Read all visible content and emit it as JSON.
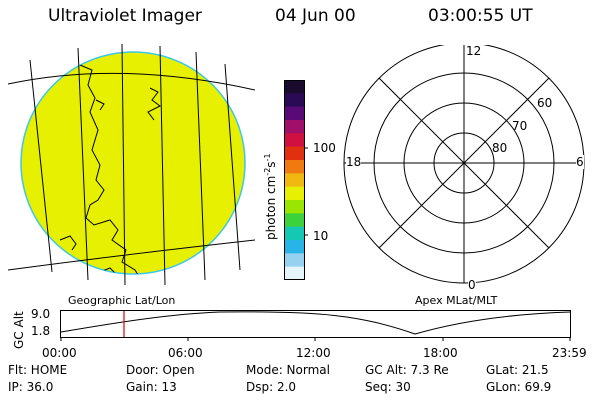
{
  "header": {
    "instrument": "Ultraviolet Imager",
    "date": "04 Jun 00",
    "time": "03:00:55 UT"
  },
  "geo_map": {
    "caption": "Geographic Lat/Lon",
    "fill_color": "#e6f000"
  },
  "color_bar": {
    "unit_label": "photon cm",
    "unit_exp1": "-2",
    "unit_mid": "s",
    "unit_exp2": "-1",
    "tick_100": "100",
    "tick_10": "10",
    "colors": [
      "#1a0a2e",
      "#2a0a55",
      "#5a0a77",
      "#a0106a",
      "#d01040",
      "#e03010",
      "#f07a10",
      "#f0b810",
      "#e6f000",
      "#9ae600",
      "#3cd23c",
      "#14c8b4",
      "#28b4e6",
      "#96d2f0",
      "#e6f5fa"
    ]
  },
  "polar": {
    "caption": "Apex MLat/MLT",
    "mlt_12": "12",
    "mlt_18": "18",
    "mlt_6": "6",
    "mlt_0": "0",
    "lat_60": "60",
    "lat_70": "70",
    "lat_80": "80"
  },
  "timeline": {
    "ylabel": "GC Alt",
    "y_top": "9.0",
    "y_bottom": "1.8",
    "ticks": [
      "00:00",
      "06:00",
      "12:00",
      "18:00",
      "23:59"
    ],
    "marker_color": "#e00000"
  },
  "status": {
    "flt": "Flt: HOME",
    "door": "Door: Open",
    "mode": "Mode: Normal",
    "gcalt": "GC Alt: 7.3 Re",
    "glat": "GLat:  21.5",
    "ip": "IP: 36.0",
    "gain": "Gain: 13",
    "dsp": "Dsp:    2.0",
    "seq": "Seq: 30",
    "glon": "GLon:  69.9"
  }
}
